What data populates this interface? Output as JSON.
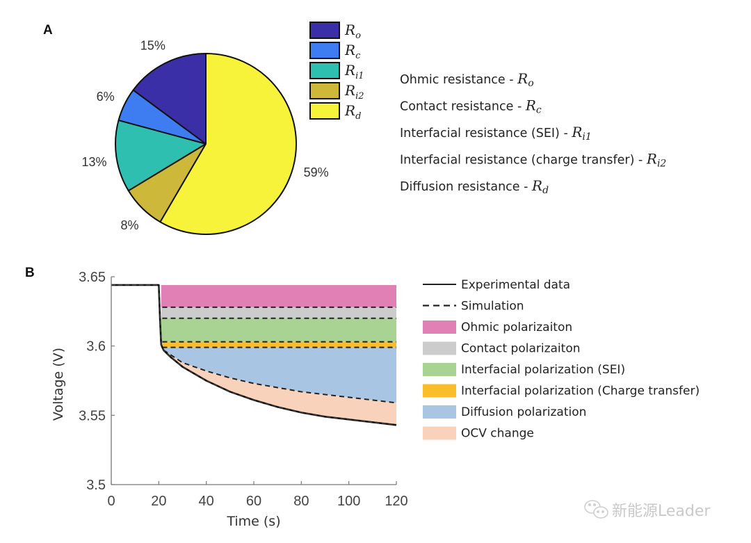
{
  "panel_a": {
    "label": "A",
    "chart_data": {
      "type": "pie",
      "title": "",
      "start": "top",
      "direction": "counterclockwise",
      "slices": [
        {
          "name": "Ro",
          "label_base": "R",
          "label_sub": "o",
          "value": 15,
          "pct_label": "15%",
          "color": "#3a2fa6"
        },
        {
          "name": "Rc",
          "label_base": "R",
          "label_sub": "c",
          "value": 6,
          "pct_label": "6%",
          "color": "#3e7cf2"
        },
        {
          "name": "Ri1",
          "label_base": "R",
          "label_sub": "i1",
          "value": 13,
          "pct_label": "13%",
          "color": "#2fbfb0"
        },
        {
          "name": "Ri2",
          "label_base": "R",
          "label_sub": "i2",
          "value": 8,
          "pct_label": "8%",
          "color": "#cdb83a"
        },
        {
          "name": "Rd",
          "label_base": "R",
          "label_sub": "d",
          "value": 59,
          "pct_label": "59%",
          "color": "#f7f23a"
        }
      ],
      "legend_placement": "top-right"
    },
    "descriptions": [
      {
        "text": "Ohmic resistance - ",
        "sym": "R",
        "sub": "o"
      },
      {
        "text": "Contact resistance - ",
        "sym": "R",
        "sub": "c"
      },
      {
        "text": "Interfacial resistance (SEI) - ",
        "sym": "R",
        "sub": "i1"
      },
      {
        "text": "Interfacial resistance (charge transfer) - ",
        "sym": "R",
        "sub": "i2"
      },
      {
        "text": "Diffusion resistance - ",
        "sym": "R",
        "sub": "d"
      }
    ]
  },
  "panel_b": {
    "label": "B",
    "chart_data": {
      "type": "area",
      "title": "",
      "xlabel": "Time (s)",
      "ylabel": "Voltage (V)",
      "xlim": [
        0,
        120
      ],
      "ylim": [
        3.5,
        3.65
      ],
      "xticks": [
        "0",
        "20",
        "40",
        "60",
        "80",
        "100",
        "120"
      ],
      "yticks": [
        "3.5",
        "3.55",
        "3.6",
        "3.65"
      ],
      "grid": false,
      "legend_placement": "right",
      "series": [
        {
          "name": "Experimental data",
          "style": "solid",
          "color": "#111111",
          "x": [
            0,
            10,
            20,
            20.5,
            21,
            22,
            25,
            30,
            40,
            50,
            60,
            70,
            80,
            90,
            100,
            110,
            120
          ],
          "y": [
            3.644,
            3.644,
            3.644,
            3.62,
            3.601,
            3.597,
            3.592,
            3.585,
            3.575,
            3.567,
            3.561,
            3.556,
            3.552,
            3.549,
            3.547,
            3.545,
            3.543
          ]
        },
        {
          "name": "Simulation",
          "style": "dashed",
          "color": "#111111",
          "x": [
            0,
            10,
            20,
            20.5,
            21,
            22,
            25,
            30,
            40,
            50,
            60,
            70,
            80,
            90,
            100,
            110,
            120
          ],
          "y": [
            3.644,
            3.644,
            3.644,
            3.62,
            3.601,
            3.597,
            3.592,
            3.585,
            3.575,
            3.567,
            3.561,
            3.556,
            3.552,
            3.549,
            3.547,
            3.545,
            3.543
          ]
        }
      ],
      "bands": [
        {
          "name": "Ohmic polarizaiton",
          "color": "#e080b5",
          "x": [
            21,
            120
          ],
          "top": [
            3.644,
            3.644
          ],
          "bottom": [
            3.628,
            3.628
          ]
        },
        {
          "name": "Contact polarizaiton",
          "color": "#cccccc",
          "x": [
            21,
            120
          ],
          "top": [
            3.628,
            3.628
          ],
          "bottom": [
            3.62,
            3.62
          ]
        },
        {
          "name": "Interfacial polarization (SEI)",
          "color": "#a8d393",
          "x": [
            21,
            120
          ],
          "top": [
            3.62,
            3.62
          ],
          "bottom": [
            3.603,
            3.603
          ]
        },
        {
          "name": "Interfacial polarization (Charge transfer)",
          "color": "#fbbd2a",
          "x": [
            21,
            120
          ],
          "top": [
            3.603,
            3.603
          ],
          "bottom": [
            3.599,
            3.599
          ]
        },
        {
          "name": "Diffusion polarization",
          "color": "#a8c6e4",
          "x": [
            22,
            30,
            40,
            50,
            60,
            70,
            80,
            90,
            100,
            110,
            120
          ],
          "top": [
            3.599,
            3.599,
            3.599,
            3.599,
            3.599,
            3.599,
            3.599,
            3.599,
            3.599,
            3.599,
            3.599
          ],
          "bottom": [
            3.597,
            3.588,
            3.582,
            3.577,
            3.573,
            3.57,
            3.567,
            3.565,
            3.563,
            3.561,
            3.559
          ]
        },
        {
          "name": "OCV change",
          "color": "#f8d2bb",
          "x": [
            22,
            30,
            40,
            50,
            60,
            70,
            80,
            90,
            100,
            110,
            120
          ],
          "top": [
            3.597,
            3.588,
            3.582,
            3.577,
            3.573,
            3.57,
            3.567,
            3.565,
            3.563,
            3.561,
            3.559
          ],
          "bottom": [
            3.597,
            3.585,
            3.575,
            3.567,
            3.561,
            3.556,
            3.552,
            3.549,
            3.547,
            3.545,
            3.543
          ]
        }
      ],
      "dashed_boundaries": [
        3.628,
        3.62,
        3.603,
        3.599
      ]
    },
    "legend": [
      {
        "kind": "solid-line",
        "label": "Experimental data"
      },
      {
        "kind": "dashed-line",
        "label": "Simulation"
      },
      {
        "kind": "swatch",
        "label": "Ohmic polarizaiton",
        "color": "#e080b5"
      },
      {
        "kind": "swatch",
        "label": "Contact polarizaiton",
        "color": "#cccccc"
      },
      {
        "kind": "swatch",
        "label": "Interfacial polarization (SEI)",
        "color": "#a8d393"
      },
      {
        "kind": "swatch",
        "label": "Interfacial polarization (Charge transfer)",
        "color": "#fbbd2a"
      },
      {
        "kind": "swatch",
        "label": "Diffusion polarization",
        "color": "#a8c6e4"
      },
      {
        "kind": "swatch",
        "label": "OCV change",
        "color": "#f8d2bb"
      }
    ]
  },
  "watermark": {
    "icon": "wechat-icon",
    "text": "新能源Leader"
  }
}
